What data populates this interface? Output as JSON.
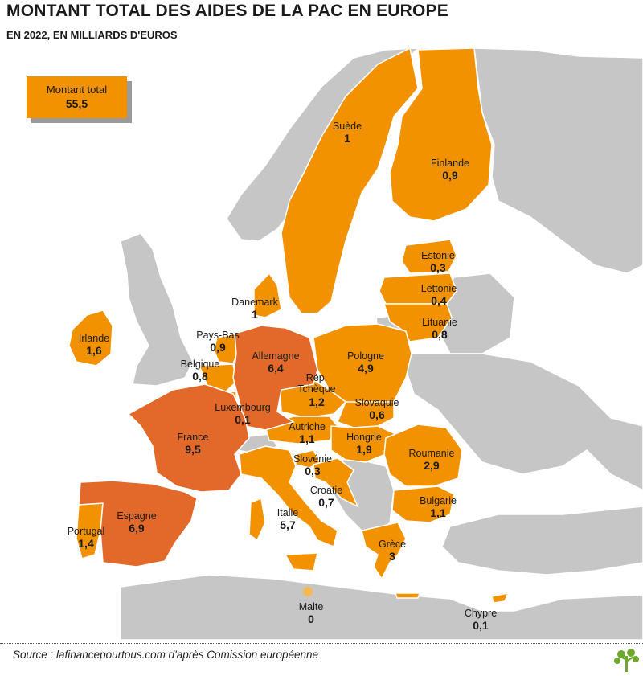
{
  "header": {
    "title": "MONTANT TOTAL DES AIDES DE LA PAC EN EUROPE",
    "subtitle": "EN 2022, EN MILLIARDS D'EUROS"
  },
  "total": {
    "label": "Montant total",
    "value": "55,5"
  },
  "colors": {
    "high": "#e3692a",
    "eu": "#f39200",
    "non_eu": "#c6c6c6",
    "sea": "#ffffff",
    "malta": "#f7b851"
  },
  "countries": [
    {
      "name": "Suède",
      "value": "1"
    },
    {
      "name": "Finlande",
      "value": "0,9"
    },
    {
      "name": "Estonie",
      "value": "0,3"
    },
    {
      "name": "Lettonie",
      "value": "0,4"
    },
    {
      "name": "Lituanie",
      "value": "0,8"
    },
    {
      "name": "Danemark",
      "value": "1"
    },
    {
      "name": "Irlande",
      "value": "1,6"
    },
    {
      "name": "Pays-Bas",
      "value": "0,9"
    },
    {
      "name": "Allemagne",
      "value": "6,4"
    },
    {
      "name": "Pologne",
      "value": "4,9"
    },
    {
      "name": "Belgique",
      "value": "0,8"
    },
    {
      "name": "Rép. Tchèque",
      "value": "1,2"
    },
    {
      "name": "Slovaquie",
      "value": "0,6"
    },
    {
      "name": "Luxembourg",
      "value": "0,1"
    },
    {
      "name": "Autriche",
      "value": "1,1"
    },
    {
      "name": "Hongrie",
      "value": "1,9"
    },
    {
      "name": "France",
      "value": "9,5"
    },
    {
      "name": "Roumanie",
      "value": "2,9"
    },
    {
      "name": "Slovénie",
      "value": "0,3"
    },
    {
      "name": "Croatie",
      "value": "0,7"
    },
    {
      "name": "Espagne",
      "value": "6,9"
    },
    {
      "name": "Bulgarie",
      "value": "1,1"
    },
    {
      "name": "Italie",
      "value": "5,7"
    },
    {
      "name": "Portugal",
      "value": "1,4"
    },
    {
      "name": "Grèce",
      "value": "3"
    },
    {
      "name": "Malte",
      "value": "0"
    },
    {
      "name": "Chypre",
      "value": "0,1"
    }
  ],
  "footer": {
    "source": "Source : lafinancepourtous.com d'après Comission européenne"
  }
}
